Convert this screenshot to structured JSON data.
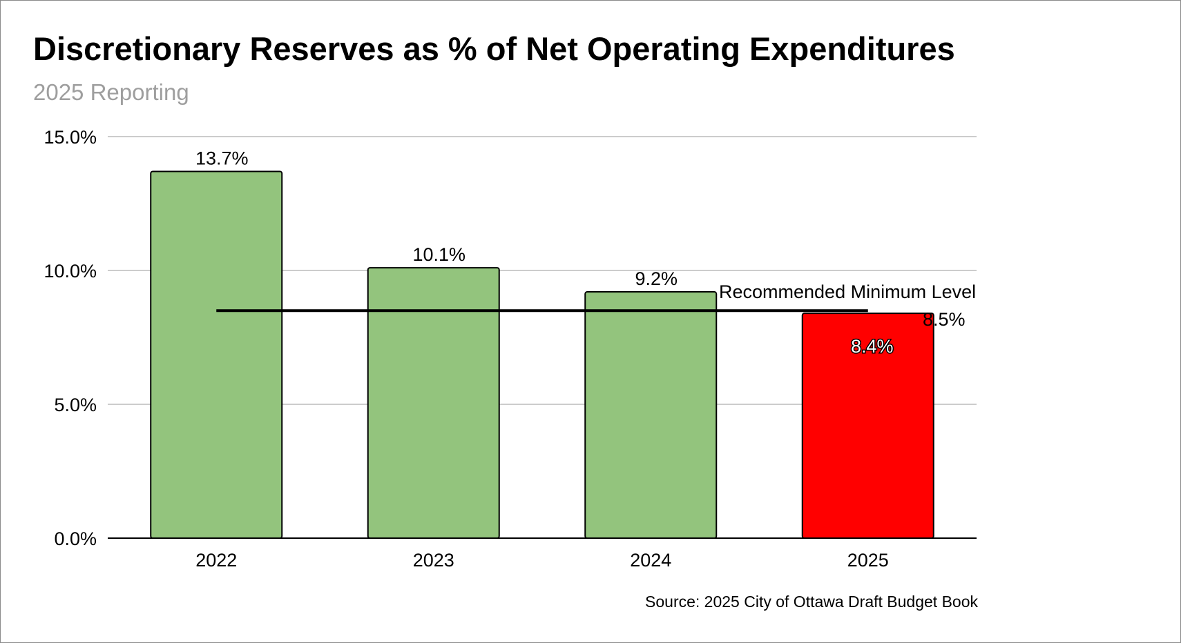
{
  "colors": {
    "bar_default": "#93c47d",
    "bar_highlight": "#ff0000",
    "bar_outline": "#000000",
    "gridline": "#cccccc",
    "reference_line": "#000000",
    "subtitle": "#9e9e9e"
  },
  "chart_data": {
    "type": "bar",
    "title": "Discretionary Reserves as % of Net Operating Expenditures",
    "subtitle": "2025 Reporting",
    "xlabel": "",
    "ylabel": "",
    "categories": [
      "2022",
      "2023",
      "2024",
      "2025"
    ],
    "series": [
      {
        "values": [
          13.7,
          10.1,
          9.2,
          8.4
        ],
        "data_labels": [
          "13.7%",
          "10.1%",
          "9.2%",
          "8.4%"
        ],
        "highlight_last": true
      }
    ],
    "ylim": [
      0,
      15
    ],
    "yticks": [
      0,
      5,
      10,
      15
    ],
    "ytick_labels": [
      "0.0%",
      "5.0%",
      "10.0%",
      "15.0%"
    ],
    "grid": true,
    "legend": "none",
    "reference_line": {
      "label": "Recommended Minimum Level",
      "value": 8.5,
      "value_label": "8.5%"
    },
    "source": "Source: 2025 City of Ottawa Draft Budget Book"
  }
}
